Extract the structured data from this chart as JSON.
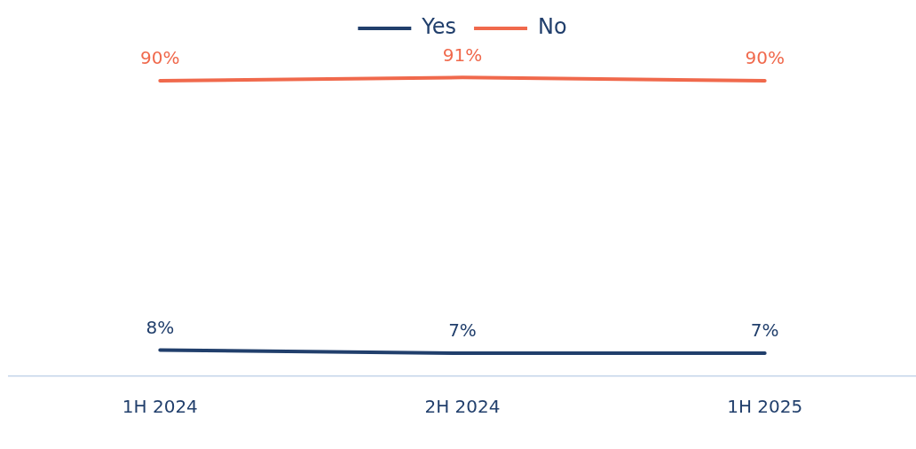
{
  "chart_data": {
    "type": "line",
    "categories": [
      "1H 2024",
      "2H 2024",
      "1H 2025"
    ],
    "series": [
      {
        "name": "Yes",
        "color": "#213f6c",
        "values": [
          8,
          7,
          7
        ],
        "value_labels": [
          "8%",
          "7%",
          "7%"
        ]
      },
      {
        "name": "No",
        "color": "#f0694c",
        "values": [
          90,
          91,
          90
        ],
        "value_labels": [
          "90%",
          "91%",
          "90%"
        ]
      }
    ],
    "legend": "top",
    "marker": "none",
    "grid": false,
    "tick_labels": "x",
    "line_style": "solid"
  }
}
